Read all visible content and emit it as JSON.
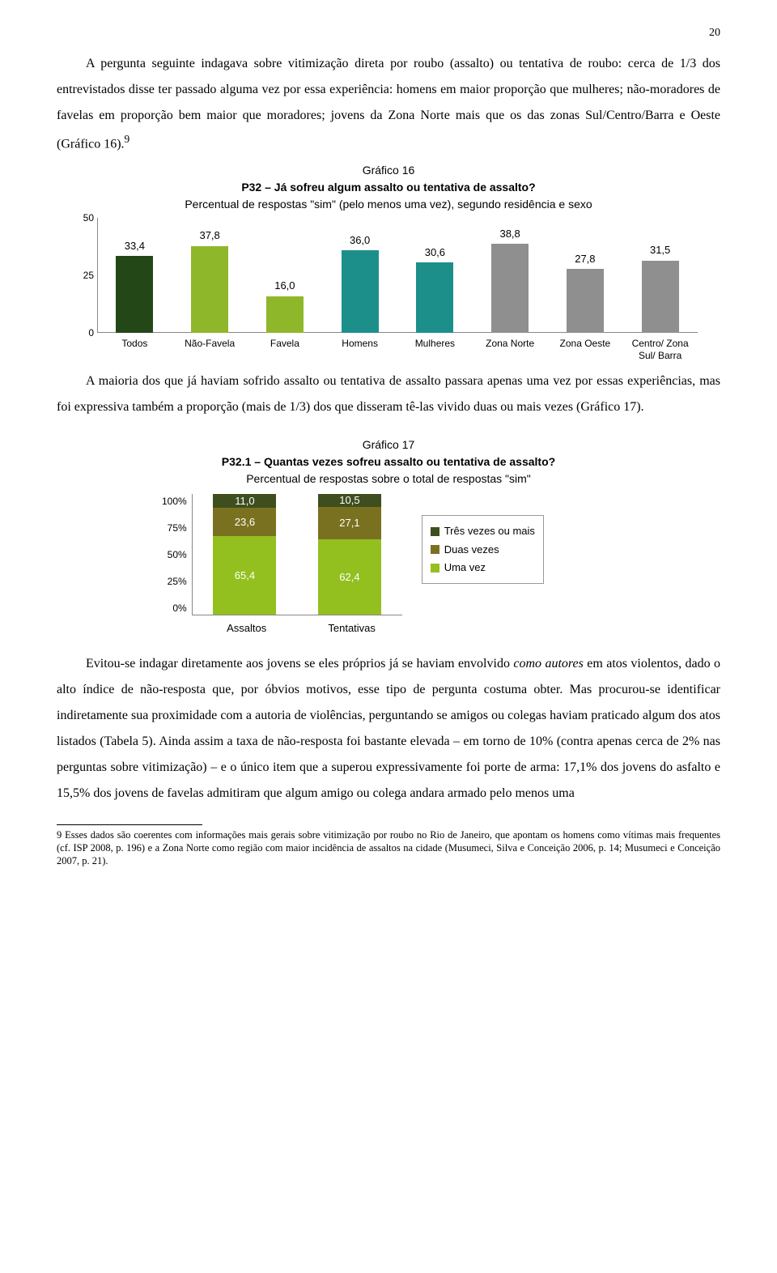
{
  "page_number": "20",
  "para1": "A pergunta seguinte indagava sobre vitimização direta por roubo (assalto) ou tentativa de roubo: cerca de 1/3 dos entrevistados disse ter passado alguma vez por essa experiência: homens em maior proporção que mulheres; não-moradores de favelas em proporção bem maior que moradores; jovens da Zona Norte mais que os das zonas Sul/Centro/Barra e Oeste (Gráfico 16).",
  "para1_sup": "9",
  "chart16": {
    "title_line1": "Gráfico 16",
    "title_line2": "P32 – Já sofreu algum assalto ou tentativa de assalto?",
    "title_line3": "Percentual de respostas \"sim\" (pelo menos uma vez), segundo residência e sexo",
    "ymax": 50,
    "yticks": [
      "50",
      "25",
      "0"
    ],
    "bars": [
      {
        "label": "Todos",
        "value": 33.4,
        "value_label": "33,4",
        "color": "#244718"
      },
      {
        "label": "Não-Favela",
        "value": 37.8,
        "value_label": "37,8",
        "color": "#8fb72a"
      },
      {
        "label": "Favela",
        "value": 16.0,
        "value_label": "16,0",
        "color": "#8fb72a"
      },
      {
        "label": "Homens",
        "value": 36.0,
        "value_label": "36,0",
        "color": "#1d8f8a"
      },
      {
        "label": "Mulheres",
        "value": 30.6,
        "value_label": "30,6",
        "color": "#1d8f8a"
      },
      {
        "label": "Zona Norte",
        "value": 38.8,
        "value_label": "38,8",
        "color": "#8f8f8f"
      },
      {
        "label": "Zona Oeste",
        "value": 27.8,
        "value_label": "27,8",
        "color": "#8f8f8f"
      },
      {
        "label": "Centro/ Zona Sul/ Barra",
        "value": 31.5,
        "value_label": "31,5",
        "color": "#8f8f8f"
      }
    ]
  },
  "para2": "A maioria dos que já haviam sofrido assalto ou tentativa de assalto passara apenas uma vez por essas experiências, mas foi expressiva também a proporção (mais de 1/3) dos que disseram tê-las vivido duas ou mais vezes (Gráfico 17).",
  "chart17": {
    "title_line1": "Gráfico 17",
    "title_line2": "P32.1 – Quantas vezes sofreu assalto ou tentativa de assalto?",
    "title_line3": "Percentual de respostas sobre o total de respostas \"sim\"",
    "yticks": [
      "100%",
      "75%",
      "50%",
      "25%",
      "0%"
    ],
    "series": [
      {
        "name": "Três vezes ou mais",
        "color": "#3e4e1e"
      },
      {
        "name": "Duas vezes",
        "color": "#7a7120"
      },
      {
        "name": "Uma vez",
        "color": "#93c01f"
      }
    ],
    "columns": [
      {
        "label": "Assaltos",
        "segments": [
          {
            "value": 11.0,
            "value_label": "11,0",
            "color": "#3e4e1e"
          },
          {
            "value": 23.6,
            "value_label": "23,6",
            "color": "#7a7120"
          },
          {
            "value": 65.4,
            "value_label": "65,4",
            "color": "#93c01f"
          }
        ]
      },
      {
        "label": "Tentativas",
        "segments": [
          {
            "value": 10.5,
            "value_label": "10,5",
            "color": "#3e4e1e"
          },
          {
            "value": 27.1,
            "value_label": "27,1",
            "color": "#7a7120"
          },
          {
            "value": 62.4,
            "value_label": "62,4",
            "color": "#93c01f"
          }
        ]
      }
    ]
  },
  "para3_pre": "Evitou-se indagar diretamente aos jovens se eles próprios já se haviam envolvido ",
  "para3_ital": "como autores",
  "para3_post": " em atos violentos, dado o alto índice de não-resposta que, por óbvios motivos, esse tipo de pergunta costuma obter. Mas procurou-se identificar indiretamente sua proximidade com a autoria de violências, perguntando se amigos ou colegas haviam praticado algum dos atos listados (Tabela 5). Ainda assim a taxa de não-resposta foi bastante elevada – em torno de 10% (contra apenas cerca de 2% nas perguntas sobre vitimização) – e o único item que a superou expressivamente foi porte de arma: 17,1% dos jovens do asfalto e 15,5% dos jovens de favelas admitiram que algum amigo ou colega andara armado pelo menos uma",
  "footnote": "9 Esses dados são coerentes com informações mais gerais sobre vitimização por roubo no Rio de Janeiro, que apontam os homens como vítimas mais frequentes (cf. ISP 2008, p. 196) e a Zona Norte como região com maior incidência de assaltos na cidade (Musumeci, Silva e Conceição 2006, p. 14; Musumeci e Conceição 2007, p. 21)."
}
